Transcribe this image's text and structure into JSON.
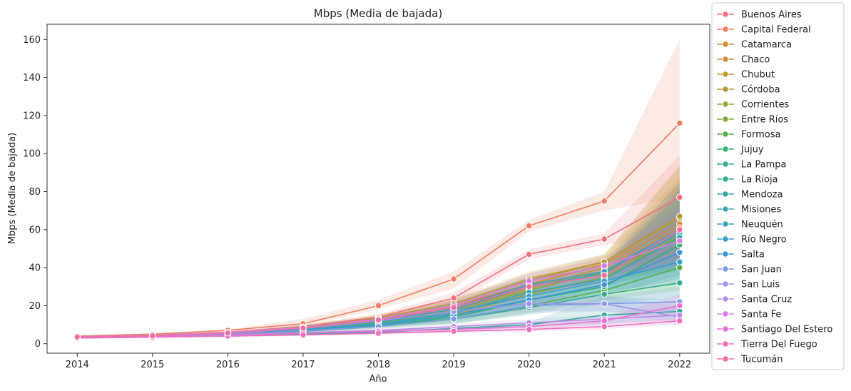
{
  "chart_data": {
    "type": "line",
    "title": "Mbps (Media de bajada)",
    "xlabel": "Año",
    "ylabel": "Mbps (Media de bajada)",
    "x": [
      2014,
      2015,
      2016,
      2017,
      2018,
      2019,
      2020,
      2021,
      2022
    ],
    "xlim": [
      2013.6,
      2022.4
    ],
    "ylim": [
      -5,
      168
    ],
    "yticks": [
      0,
      20,
      40,
      60,
      80,
      100,
      120,
      140,
      160
    ],
    "grid": false,
    "legend": "right",
    "series": [
      {
        "name": "Buenos Aires",
        "color": "#f0707e",
        "values": [
          3.8,
          4.5,
          6.0,
          9.0,
          14.0,
          24.0,
          47.0,
          55.0,
          77.0
        ],
        "band": [
          [
            3.5,
            4.1
          ],
          [
            4.1,
            4.9
          ],
          [
            5.5,
            6.5
          ],
          [
            8.0,
            10.0
          ],
          [
            12.5,
            15.5
          ],
          [
            21.0,
            27.0
          ],
          [
            44.5,
            49.5
          ],
          [
            52.0,
            58.0
          ],
          [
            56.0,
            99.0
          ]
        ]
      },
      {
        "name": "Capital Federal",
        "color": "#ef7c5f",
        "values": [
          4.0,
          5.0,
          7.0,
          10.5,
          20.0,
          34.0,
          62.0,
          75.0,
          116.0
        ],
        "band": [
          [
            3.6,
            4.4
          ],
          [
            4.6,
            5.5
          ],
          [
            6.5,
            7.5
          ],
          [
            9.0,
            13.0
          ],
          [
            18.0,
            23.0
          ],
          [
            29.0,
            38.0
          ],
          [
            59.0,
            65.0
          ],
          [
            70.0,
            80.0
          ],
          [
            77.0,
            160.0
          ]
        ]
      },
      {
        "name": "Catamarca",
        "color": "#dc8633",
        "values": [
          3.5,
          4.2,
          5.5,
          8.0,
          12.0,
          20.0,
          31.0,
          42.0,
          63.0
        ],
        "band": [
          [
            3.0,
            4.0
          ],
          [
            3.8,
            4.7
          ],
          [
            5.0,
            6.0
          ],
          [
            7.0,
            9.0
          ],
          [
            10.0,
            14.0
          ],
          [
            16.0,
            24.0
          ],
          [
            27.0,
            35.0
          ],
          [
            38.0,
            46.0
          ],
          [
            45.0,
            88.0
          ]
        ]
      },
      {
        "name": "Chaco",
        "color": "#d1903a",
        "values": [
          3.4,
          4.0,
          5.2,
          7.5,
          11.0,
          18.0,
          29.0,
          40.0,
          61.0
        ],
        "band": [
          [
            3.0,
            3.8
          ],
          [
            3.6,
            4.4
          ],
          [
            4.7,
            5.7
          ],
          [
            6.5,
            8.5
          ],
          [
            9.5,
            12.5
          ],
          [
            15.0,
            21.0
          ],
          [
            25.0,
            33.0
          ],
          [
            36.0,
            44.0
          ],
          [
            42.0,
            85.0
          ]
        ]
      },
      {
        "name": "Chubut",
        "color": "#c39a33",
        "values": [
          3.6,
          4.3,
          5.6,
          8.5,
          13.0,
          20.0,
          33.0,
          43.0,
          66.0
        ],
        "band": [
          [
            3.2,
            4.0
          ],
          [
            3.9,
            4.7
          ],
          [
            5.1,
            6.1
          ],
          [
            7.5,
            9.5
          ],
          [
            11.0,
            15.0
          ],
          [
            17.0,
            23.0
          ],
          [
            29.0,
            37.0
          ],
          [
            39.0,
            47.0
          ],
          [
            46.0,
            93.0
          ]
        ]
      },
      {
        "name": "Córdoba",
        "color": "#b39a33",
        "values": [
          3.7,
          4.4,
          5.8,
          8.8,
          13.5,
          21.0,
          34.0,
          43.0,
          67.0
        ],
        "band": [
          [
            3.3,
            4.1
          ],
          [
            4.0,
            4.8
          ],
          [
            5.3,
            6.3
          ],
          [
            7.8,
            9.8
          ],
          [
            11.5,
            15.5
          ],
          [
            18.0,
            24.0
          ],
          [
            30.0,
            38.0
          ],
          [
            39.0,
            47.0
          ],
          [
            48.0,
            94.0
          ]
        ]
      },
      {
        "name": "Corrientes",
        "color": "#a1a437",
        "values": [
          3.3,
          3.9,
          5.0,
          7.0,
          10.0,
          15.0,
          26.0,
          35.0,
          57.0
        ],
        "band": [
          [
            2.9,
            3.7
          ],
          [
            3.5,
            4.3
          ],
          [
            4.5,
            5.5
          ],
          [
            6.2,
            7.8
          ],
          [
            8.8,
            11.2
          ],
          [
            12.5,
            17.5
          ],
          [
            22.0,
            30.0
          ],
          [
            31.0,
            39.0
          ],
          [
            40.0,
            80.0
          ]
        ]
      },
      {
        "name": "Entre Ríos",
        "color": "#83ad3a",
        "values": [
          3.5,
          4.1,
          5.4,
          7.8,
          11.0,
          17.0,
          28.0,
          38.0,
          55.0
        ],
        "band": [
          [
            3.1,
            3.9
          ],
          [
            3.7,
            4.5
          ],
          [
            4.9,
            5.9
          ],
          [
            6.8,
            8.8
          ],
          [
            9.5,
            12.5
          ],
          [
            14.0,
            20.0
          ],
          [
            24.0,
            32.0
          ],
          [
            34.0,
            42.0
          ],
          [
            38.0,
            78.0
          ]
        ]
      },
      {
        "name": "Formosa",
        "color": "#50b146",
        "values": [
          3.2,
          3.8,
          4.8,
          6.5,
          9.0,
          13.0,
          20.0,
          28.0,
          40.0
        ],
        "band": [
          [
            2.8,
            3.6
          ],
          [
            3.4,
            4.2
          ],
          [
            4.3,
            5.3
          ],
          [
            5.7,
            7.3
          ],
          [
            7.8,
            10.2
          ],
          [
            10.5,
            15.5
          ],
          [
            16.0,
            24.0
          ],
          [
            23.0,
            33.0
          ],
          [
            28.0,
            60.0
          ]
        ]
      },
      {
        "name": "Jujuy",
        "color": "#33b06b",
        "values": [
          3.3,
          3.9,
          5.0,
          6.8,
          9.5,
          14.0,
          23.0,
          30.0,
          52.0
        ],
        "band": [
          [
            2.9,
            3.7
          ],
          [
            3.5,
            4.3
          ],
          [
            4.5,
            5.5
          ],
          [
            6.0,
            7.6
          ],
          [
            8.3,
            10.7
          ],
          [
            11.5,
            16.5
          ],
          [
            19.0,
            27.0
          ],
          [
            25.0,
            35.0
          ],
          [
            36.0,
            74.0
          ]
        ]
      },
      {
        "name": "La Pampa",
        "color": "#34ae8d",
        "values": [
          3.4,
          4.0,
          5.2,
          7.0,
          10.0,
          13.0,
          19.0,
          26.0,
          32.0
        ],
        "band": [
          [
            3.0,
            3.8
          ],
          [
            3.6,
            4.4
          ],
          [
            4.7,
            5.7
          ],
          [
            6.2,
            7.8
          ],
          [
            8.8,
            11.2
          ],
          [
            10.5,
            15.5
          ],
          [
            15.0,
            23.0
          ],
          [
            21.0,
            31.0
          ],
          [
            24.0,
            48.0
          ]
        ]
      },
      {
        "name": "La Rioja",
        "color": "#35aa9c",
        "values": [
          3.0,
          3.5,
          4.2,
          5.0,
          6.0,
          8.0,
          10.0,
          15.0,
          17.0
        ],
        "band": [
          [
            2.6,
            3.4
          ],
          [
            3.1,
            3.9
          ],
          [
            3.7,
            4.7
          ],
          [
            4.4,
            5.6
          ],
          [
            5.2,
            6.8
          ],
          [
            6.8,
            9.2
          ],
          [
            8.5,
            11.5
          ],
          [
            10.0,
            25.0
          ],
          [
            13.0,
            23.0
          ]
        ]
      },
      {
        "name": "Mendoza",
        "color": "#36a8a8",
        "values": [
          3.6,
          4.2,
          5.6,
          8.3,
          12.0,
          18.0,
          30.0,
          37.0,
          58.0
        ],
        "band": [
          [
            3.2,
            4.0
          ],
          [
            3.8,
            4.6
          ],
          [
            5.1,
            6.1
          ],
          [
            7.3,
            9.3
          ],
          [
            10.5,
            13.5
          ],
          [
            15.0,
            21.0
          ],
          [
            26.0,
            34.0
          ],
          [
            33.0,
            41.0
          ],
          [
            41.0,
            82.0
          ]
        ]
      },
      {
        "name": "Misiones",
        "color": "#37a5b3",
        "values": [
          3.4,
          4.0,
          5.3,
          7.4,
          10.5,
          16.0,
          27.0,
          34.0,
          56.0
        ],
        "band": [
          [
            3.0,
            3.8
          ],
          [
            3.6,
            4.4
          ],
          [
            4.8,
            5.8
          ],
          [
            6.4,
            8.4
          ],
          [
            9.2,
            11.8
          ],
          [
            13.0,
            19.0
          ],
          [
            23.0,
            31.0
          ],
          [
            30.0,
            38.0
          ],
          [
            39.0,
            79.0
          ]
        ]
      },
      {
        "name": "Neuquén",
        "color": "#38a2c0",
        "values": [
          3.6,
          4.3,
          5.7,
          8.5,
          12.5,
          19.0,
          31.0,
          38.0,
          60.0
        ],
        "band": [
          [
            3.2,
            4.0
          ],
          [
            3.9,
            4.7
          ],
          [
            5.2,
            6.2
          ],
          [
            7.5,
            9.5
          ],
          [
            11.0,
            14.0
          ],
          [
            16.0,
            22.0
          ],
          [
            27.0,
            35.0
          ],
          [
            34.0,
            42.0
          ],
          [
            42.0,
            85.0
          ]
        ]
      },
      {
        "name": "Río Negro",
        "color": "#3b9dd0",
        "values": [
          3.5,
          4.1,
          5.5,
          8.0,
          11.5,
          17.0,
          25.0,
          33.0,
          43.0
        ],
        "band": [
          [
            3.1,
            3.9
          ],
          [
            3.7,
            4.5
          ],
          [
            5.0,
            6.0
          ],
          [
            7.0,
            9.0
          ],
          [
            10.0,
            13.0
          ],
          [
            14.0,
            20.0
          ],
          [
            21.0,
            29.0
          ],
          [
            28.0,
            38.0
          ],
          [
            31.0,
            62.0
          ]
        ]
      },
      {
        "name": "Salta",
        "color": "#3b95e0",
        "values": [
          3.4,
          4.0,
          5.2,
          7.2,
          10.0,
          15.0,
          23.0,
          31.0,
          48.0
        ],
        "band": [
          [
            3.0,
            3.8
          ],
          [
            3.6,
            4.4
          ],
          [
            4.7,
            5.7
          ],
          [
            6.3,
            8.1
          ],
          [
            8.8,
            11.2
          ],
          [
            12.5,
            17.5
          ],
          [
            19.0,
            27.0
          ],
          [
            26.0,
            36.0
          ],
          [
            34.0,
            68.0
          ]
        ]
      },
      {
        "name": "San Juan",
        "color": "#7b9be8",
        "values": [
          3.3,
          3.9,
          5.0,
          6.8,
          9.0,
          13.0,
          20.0,
          21.0,
          22.0
        ],
        "band": [
          [
            2.9,
            3.7
          ],
          [
            3.5,
            4.3
          ],
          [
            4.5,
            5.5
          ],
          [
            6.0,
            7.6
          ],
          [
            7.8,
            10.2
          ],
          [
            10.5,
            15.5
          ],
          [
            16.0,
            24.0
          ],
          [
            17.0,
            25.0
          ],
          [
            16.0,
            30.0
          ]
        ]
      },
      {
        "name": "San Luis",
        "color": "#9b95e8",
        "values": [
          3.5,
          4.1,
          5.5,
          8.0,
          12.0,
          17.0,
          21.0,
          21.0,
          14.0
        ],
        "band": [
          [
            3.1,
            3.9
          ],
          [
            3.7,
            4.5
          ],
          [
            5.0,
            6.0
          ],
          [
            7.0,
            9.0
          ],
          [
            10.5,
            13.5
          ],
          [
            14.0,
            20.0
          ],
          [
            17.0,
            25.0
          ],
          [
            17.0,
            25.0
          ],
          [
            10.0,
            20.0
          ]
        ]
      },
      {
        "name": "Santa Cruz",
        "color": "#b98ce6",
        "values": [
          3.2,
          3.7,
          4.6,
          5.8,
          7.0,
          9.0,
          11.0,
          13.0,
          15.0
        ],
        "band": [
          [
            2.8,
            3.6
          ],
          [
            3.3,
            4.1
          ],
          [
            4.1,
            5.1
          ],
          [
            5.1,
            6.5
          ],
          [
            6.0,
            8.0
          ],
          [
            7.6,
            10.4
          ],
          [
            9.2,
            12.8
          ],
          [
            10.5,
            15.5
          ],
          [
            12.0,
            20.0
          ]
        ]
      },
      {
        "name": "Santa Fe",
        "color": "#d67de6",
        "values": [
          3.7,
          4.4,
          5.9,
          8.6,
          13.0,
          20.0,
          33.0,
          41.0,
          54.0
        ],
        "band": [
          [
            3.3,
            4.1
          ],
          [
            4.0,
            4.8
          ],
          [
            5.4,
            6.4
          ],
          [
            7.6,
            9.6
          ],
          [
            11.5,
            14.5
          ],
          [
            17.0,
            23.0
          ],
          [
            29.0,
            37.0
          ],
          [
            37.0,
            45.0
          ],
          [
            40.0,
            72.0
          ]
        ]
      },
      {
        "name": "Santiago Del Estero",
        "color": "#e870d6",
        "values": [
          3.1,
          3.6,
          4.4,
          5.5,
          6.5,
          7.5,
          9.0,
          12.0,
          20.0
        ],
        "band": [
          [
            2.7,
            3.5
          ],
          [
            3.2,
            4.0
          ],
          [
            3.9,
            4.9
          ],
          [
            4.8,
            6.2
          ],
          [
            5.6,
            7.4
          ],
          [
            6.4,
            8.6
          ],
          [
            7.6,
            10.4
          ],
          [
            10.0,
            14.0
          ],
          [
            15.0,
            26.0
          ]
        ]
      },
      {
        "name": "Tierra Del Fuego",
        "color": "#ee6fbe",
        "values": [
          3.0,
          3.4,
          4.0,
          4.6,
          5.5,
          6.5,
          7.5,
          9.0,
          12.0
        ],
        "band": [
          [
            2.6,
            3.4
          ],
          [
            3.0,
            3.8
          ],
          [
            3.5,
            4.5
          ],
          [
            4.0,
            5.2
          ],
          [
            4.8,
            6.2
          ],
          [
            5.6,
            7.4
          ],
          [
            6.4,
            8.6
          ],
          [
            7.6,
            10.4
          ],
          [
            10.0,
            14.0
          ]
        ]
      },
      {
        "name": "Tucumán",
        "color": "#f06fa0",
        "values": [
          3.6,
          4.2,
          5.6,
          8.2,
          12.5,
          19.0,
          30.0,
          36.0,
          60.0
        ],
        "band": [
          [
            3.2,
            4.0
          ],
          [
            3.8,
            4.6
          ],
          [
            5.1,
            6.1
          ],
          [
            7.2,
            9.2
          ],
          [
            11.0,
            14.0
          ],
          [
            16.0,
            22.0
          ],
          [
            26.0,
            34.0
          ],
          [
            32.0,
            40.0
          ],
          [
            44.0,
            82.0
          ]
        ]
      }
    ]
  }
}
